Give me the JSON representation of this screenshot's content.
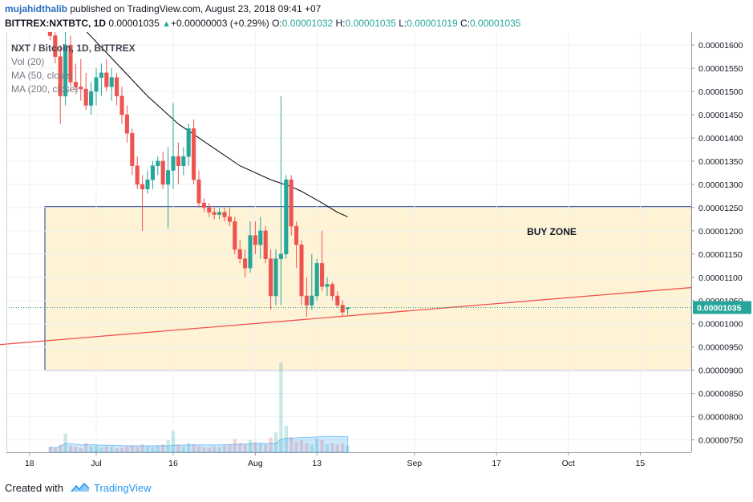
{
  "header": {
    "author": "mujahidthalib",
    "published_text": "published on TradingView.com, August 23, 2018 09:41 +07",
    "symbol": "BITTREX:NXTBTC, 1D",
    "last": "0.00001035",
    "change": "+0.00000003 (+0.29%)",
    "o_label": "O:",
    "o_value": "0.00001032",
    "h_label": "H:",
    "h_value": "0.00001035",
    "l_label": "L:",
    "l_value": "0.00001019",
    "c_label": "C:",
    "c_value": "0.00001035"
  },
  "legend": {
    "title": "NXT / Bitcoin, 1D, BITTREX",
    "vol": "Vol (20)",
    "ma50": "MA (50, close)",
    "ma200": "MA (200, close)"
  },
  "annotation": {
    "buy_zone": "BUY ZONE"
  },
  "footer": {
    "created_with": "Created with",
    "brand": "TradingView"
  },
  "colors": {
    "up": "#26a69a",
    "down": "#ef5350",
    "zone_fill": "#fff3d6",
    "zone_border": "#1e3a8a",
    "trendline": "#ef5350",
    "ma": "#000000",
    "brand": "#2196f3",
    "price_label": "#26a69a"
  },
  "chart_data": {
    "type": "candlestick",
    "title": "NXT / Bitcoin, 1D, BITTREX",
    "y_axis": {
      "min": 7.2e-06,
      "max": 1.63e-05,
      "ticks": [
        "0.00000750",
        "0.00000800",
        "0.00000850",
        "0.00000900",
        "0.00000950",
        "0.00001000",
        "0.00001050",
        "0.00001100",
        "0.00001150",
        "0.00001200",
        "0.00001250",
        "0.00001300",
        "0.00001350",
        "0.00001400",
        "0.00001450",
        "0.00001500",
        "0.00001550",
        "0.00001600"
      ],
      "current_label": "0.00001035"
    },
    "x_axis": {
      "ticks": [
        {
          "label": "18",
          "day": -13
        },
        {
          "label": "Jul",
          "day": 0
        },
        {
          "label": "16",
          "day": 15
        },
        {
          "label": "Aug",
          "day": 31
        },
        {
          "label": "13",
          "day": 43
        },
        {
          "label": "Sep",
          "day": 62
        },
        {
          "label": "17",
          "day": 78
        },
        {
          "label": "Oct",
          "day": 92
        },
        {
          "label": "15",
          "day": 106
        }
      ]
    },
    "candles": [
      {
        "d": -9,
        "o": 1635,
        "h": 1660,
        "l": 1610,
        "c": 1620
      },
      {
        "d": -8,
        "o": 1620,
        "h": 1650,
        "l": 1560,
        "c": 1575
      },
      {
        "d": -7,
        "o": 1575,
        "h": 1600,
        "l": 1430,
        "c": 1490
      },
      {
        "d": -6,
        "o": 1490,
        "h": 1640,
        "l": 1470,
        "c": 1600
      },
      {
        "d": -5,
        "o": 1600,
        "h": 1620,
        "l": 1510,
        "c": 1520
      },
      {
        "d": -4,
        "o": 1520,
        "h": 1560,
        "l": 1500,
        "c": 1510
      },
      {
        "d": -3,
        "o": 1510,
        "h": 1570,
        "l": 1480,
        "c": 1505
      },
      {
        "d": -2,
        "o": 1505,
        "h": 1540,
        "l": 1460,
        "c": 1470
      },
      {
        "d": -1,
        "o": 1470,
        "h": 1520,
        "l": 1450,
        "c": 1500
      },
      {
        "d": 0,
        "o": 1500,
        "h": 1550,
        "l": 1470,
        "c": 1530
      },
      {
        "d": 1,
        "o": 1530,
        "h": 1560,
        "l": 1490,
        "c": 1540
      },
      {
        "d": 2,
        "o": 1540,
        "h": 1570,
        "l": 1500,
        "c": 1510
      },
      {
        "d": 3,
        "o": 1510,
        "h": 1550,
        "l": 1480,
        "c": 1530
      },
      {
        "d": 4,
        "o": 1530,
        "h": 1540,
        "l": 1470,
        "c": 1490
      },
      {
        "d": 5,
        "o": 1490,
        "h": 1510,
        "l": 1430,
        "c": 1450
      },
      {
        "d": 6,
        "o": 1450,
        "h": 1470,
        "l": 1390,
        "c": 1410
      },
      {
        "d": 7,
        "o": 1410,
        "h": 1420,
        "l": 1320,
        "c": 1340
      },
      {
        "d": 8,
        "o": 1340,
        "h": 1360,
        "l": 1290,
        "c": 1300
      },
      {
        "d": 9,
        "o": 1300,
        "h": 1320,
        "l": 1200,
        "c": 1290
      },
      {
        "d": 10,
        "o": 1290,
        "h": 1330,
        "l": 1280,
        "c": 1310
      },
      {
        "d": 11,
        "o": 1310,
        "h": 1350,
        "l": 1290,
        "c": 1340
      },
      {
        "d": 12,
        "o": 1340,
        "h": 1360,
        "l": 1320,
        "c": 1350
      },
      {
        "d": 13,
        "o": 1350,
        "h": 1370,
        "l": 1290,
        "c": 1300
      },
      {
        "d": 14,
        "o": 1300,
        "h": 1380,
        "l": 1205,
        "c": 1330
      },
      {
        "d": 15,
        "o": 1330,
        "h": 1475,
        "l": 1290,
        "c": 1360
      },
      {
        "d": 16,
        "o": 1360,
        "h": 1390,
        "l": 1300,
        "c": 1340
      },
      {
        "d": 17,
        "o": 1340,
        "h": 1380,
        "l": 1320,
        "c": 1360
      },
      {
        "d": 18,
        "o": 1360,
        "h": 1430,
        "l": 1340,
        "c": 1420
      },
      {
        "d": 19,
        "o": 1420,
        "h": 1440,
        "l": 1300,
        "c": 1310
      },
      {
        "d": 20,
        "o": 1310,
        "h": 1330,
        "l": 1250,
        "c": 1260
      },
      {
        "d": 21,
        "o": 1260,
        "h": 1270,
        "l": 1240,
        "c": 1250
      },
      {
        "d": 22,
        "o": 1250,
        "h": 1260,
        "l": 1230,
        "c": 1240
      },
      {
        "d": 23,
        "o": 1240,
        "h": 1250,
        "l": 1225,
        "c": 1235
      },
      {
        "d": 24,
        "o": 1235,
        "h": 1250,
        "l": 1225,
        "c": 1240
      },
      {
        "d": 25,
        "o": 1240,
        "h": 1250,
        "l": 1220,
        "c": 1230
      },
      {
        "d": 26,
        "o": 1230,
        "h": 1250,
        "l": 1210,
        "c": 1220
      },
      {
        "d": 27,
        "o": 1220,
        "h": 1230,
        "l": 1150,
        "c": 1160
      },
      {
        "d": 28,
        "o": 1160,
        "h": 1180,
        "l": 1130,
        "c": 1140
      },
      {
        "d": 29,
        "o": 1140,
        "h": 1160,
        "l": 1100,
        "c": 1120
      },
      {
        "d": 30,
        "o": 1120,
        "h": 1220,
        "l": 1110,
        "c": 1190
      },
      {
        "d": 31,
        "o": 1190,
        "h": 1220,
        "l": 1150,
        "c": 1170
      },
      {
        "d": 32,
        "o": 1170,
        "h": 1230,
        "l": 1140,
        "c": 1200
      },
      {
        "d": 33,
        "o": 1200,
        "h": 1210,
        "l": 1130,
        "c": 1140
      },
      {
        "d": 34,
        "o": 1140,
        "h": 1160,
        "l": 1030,
        "c": 1060
      },
      {
        "d": 35,
        "o": 1060,
        "h": 1160,
        "l": 1040,
        "c": 1140
      },
      {
        "d": 36,
        "o": 1140,
        "h": 1490,
        "l": 1040,
        "c": 1150
      },
      {
        "d": 37,
        "o": 1150,
        "h": 1320,
        "l": 1140,
        "c": 1310
      },
      {
        "d": 38,
        "o": 1310,
        "h": 1320,
        "l": 1190,
        "c": 1210
      },
      {
        "d": 39,
        "o": 1210,
        "h": 1220,
        "l": 1120,
        "c": 1170
      },
      {
        "d": 40,
        "o": 1170,
        "h": 1180,
        "l": 1040,
        "c": 1060
      },
      {
        "d": 41,
        "o": 1060,
        "h": 1100,
        "l": 1015,
        "c": 1040
      },
      {
        "d": 42,
        "o": 1040,
        "h": 1150,
        "l": 1030,
        "c": 1060
      },
      {
        "d": 43,
        "o": 1060,
        "h": 1140,
        "l": 1050,
        "c": 1130
      },
      {
        "d": 44,
        "o": 1130,
        "h": 1200,
        "l": 1070,
        "c": 1080
      },
      {
        "d": 45,
        "o": 1080,
        "h": 1100,
        "l": 1060,
        "c": 1085
      },
      {
        "d": 46,
        "o": 1085,
        "h": 1090,
        "l": 1050,
        "c": 1060
      },
      {
        "d": 47,
        "o": 1060,
        "h": 1070,
        "l": 1035,
        "c": 1040
      },
      {
        "d": 48,
        "o": 1040,
        "h": 1050,
        "l": 1015,
        "c": 1025
      },
      {
        "d": 49,
        "o": 1032,
        "h": 1035,
        "l": 1019,
        "c": 1035
      }
    ],
    "ma50": [
      [
        -2,
        1630
      ],
      [
        4,
        1560
      ],
      [
        10,
        1490
      ],
      [
        16,
        1430
      ],
      [
        22,
        1385
      ],
      [
        28,
        1340
      ],
      [
        34,
        1310
      ],
      [
        38,
        1295
      ],
      [
        40,
        1285
      ],
      [
        44,
        1260
      ],
      [
        47,
        1240
      ],
      [
        49,
        1230
      ]
    ],
    "volume": [
      {
        "d": -9,
        "v": 8
      },
      {
        "d": -8,
        "v": 6
      },
      {
        "d": -7,
        "v": 12
      },
      {
        "d": -6,
        "v": 28
      },
      {
        "d": -5,
        "v": 10
      },
      {
        "d": -4,
        "v": 8
      },
      {
        "d": -3,
        "v": 6
      },
      {
        "d": -2,
        "v": 14
      },
      {
        "d": -1,
        "v": 9
      },
      {
        "d": 0,
        "v": 10
      },
      {
        "d": 1,
        "v": 7
      },
      {
        "d": 2,
        "v": 9
      },
      {
        "d": 3,
        "v": 8
      },
      {
        "d": 4,
        "v": 6
      },
      {
        "d": 5,
        "v": 7
      },
      {
        "d": 6,
        "v": 9
      },
      {
        "d": 7,
        "v": 10
      },
      {
        "d": 8,
        "v": 8
      },
      {
        "d": 9,
        "v": 12
      },
      {
        "d": 10,
        "v": 9
      },
      {
        "d": 11,
        "v": 8
      },
      {
        "d": 12,
        "v": 10
      },
      {
        "d": 13,
        "v": 12
      },
      {
        "d": 14,
        "v": 18
      },
      {
        "d": 15,
        "v": 32
      },
      {
        "d": 16,
        "v": 12
      },
      {
        "d": 17,
        "v": 9
      },
      {
        "d": 18,
        "v": 14
      },
      {
        "d": 19,
        "v": 12
      },
      {
        "d": 20,
        "v": 10
      },
      {
        "d": 21,
        "v": 8
      },
      {
        "d": 22,
        "v": 7
      },
      {
        "d": 23,
        "v": 9
      },
      {
        "d": 24,
        "v": 8
      },
      {
        "d": 25,
        "v": 10
      },
      {
        "d": 26,
        "v": 12
      },
      {
        "d": 27,
        "v": 20
      },
      {
        "d": 28,
        "v": 14
      },
      {
        "d": 29,
        "v": 12
      },
      {
        "d": 30,
        "v": 18
      },
      {
        "d": 31,
        "v": 16
      },
      {
        "d": 32,
        "v": 14
      },
      {
        "d": 33,
        "v": 12
      },
      {
        "d": 34,
        "v": 22
      },
      {
        "d": 35,
        "v": 30
      },
      {
        "d": 36,
        "v": 135
      },
      {
        "d": 37,
        "v": 40
      },
      {
        "d": 38,
        "v": 22
      },
      {
        "d": 39,
        "v": 16
      },
      {
        "d": 40,
        "v": 18
      },
      {
        "d": 41,
        "v": 14
      },
      {
        "d": 42,
        "v": 12
      },
      {
        "d": 43,
        "v": 20
      },
      {
        "d": 44,
        "v": 18
      },
      {
        "d": 45,
        "v": 12
      },
      {
        "d": 46,
        "v": 14
      },
      {
        "d": 47,
        "v": 12
      },
      {
        "d": 48,
        "v": 14
      },
      {
        "d": 49,
        "v": 10
      }
    ],
    "buy_zone": {
      "d_start": -10,
      "d_end": 116,
      "y_low": 900,
      "y_high": 1252
    },
    "trendline": {
      "d_start": -19,
      "y_start": 955,
      "d_end": 116,
      "y_end": 1078
    },
    "current_price": 1035
  }
}
